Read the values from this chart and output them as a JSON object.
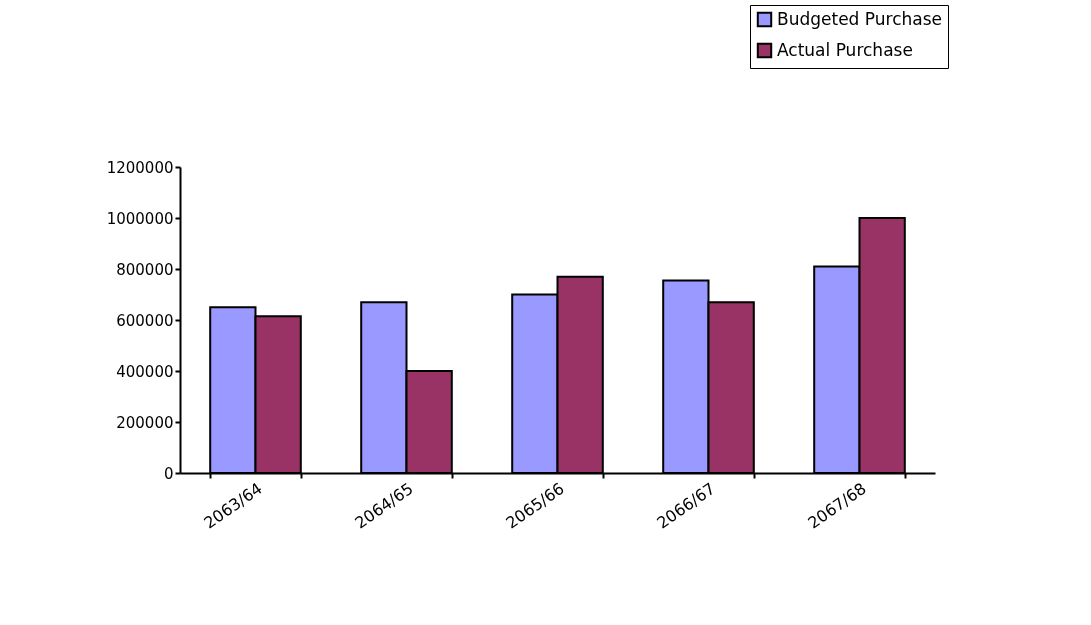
{
  "chart_data": {
    "type": "bar",
    "categories": [
      "2063/64",
      "2064/65",
      "2065/66",
      "2066/67",
      "2067/68"
    ],
    "series": [
      {
        "name": "Budgeted Purchase",
        "color": "#9999ff",
        "values": [
          650000,
          670000,
          700000,
          755000,
          810000
        ]
      },
      {
        "name": "Actual Purchase",
        "color": "#993366",
        "values": [
          615000,
          400000,
          770000,
          670000,
          1000000
        ]
      }
    ],
    "ylim": [
      0,
      1200000
    ],
    "yticks": [
      0,
      200000,
      400000,
      600000,
      800000,
      1000000,
      1200000
    ],
    "grid": false,
    "legend": "top right"
  }
}
